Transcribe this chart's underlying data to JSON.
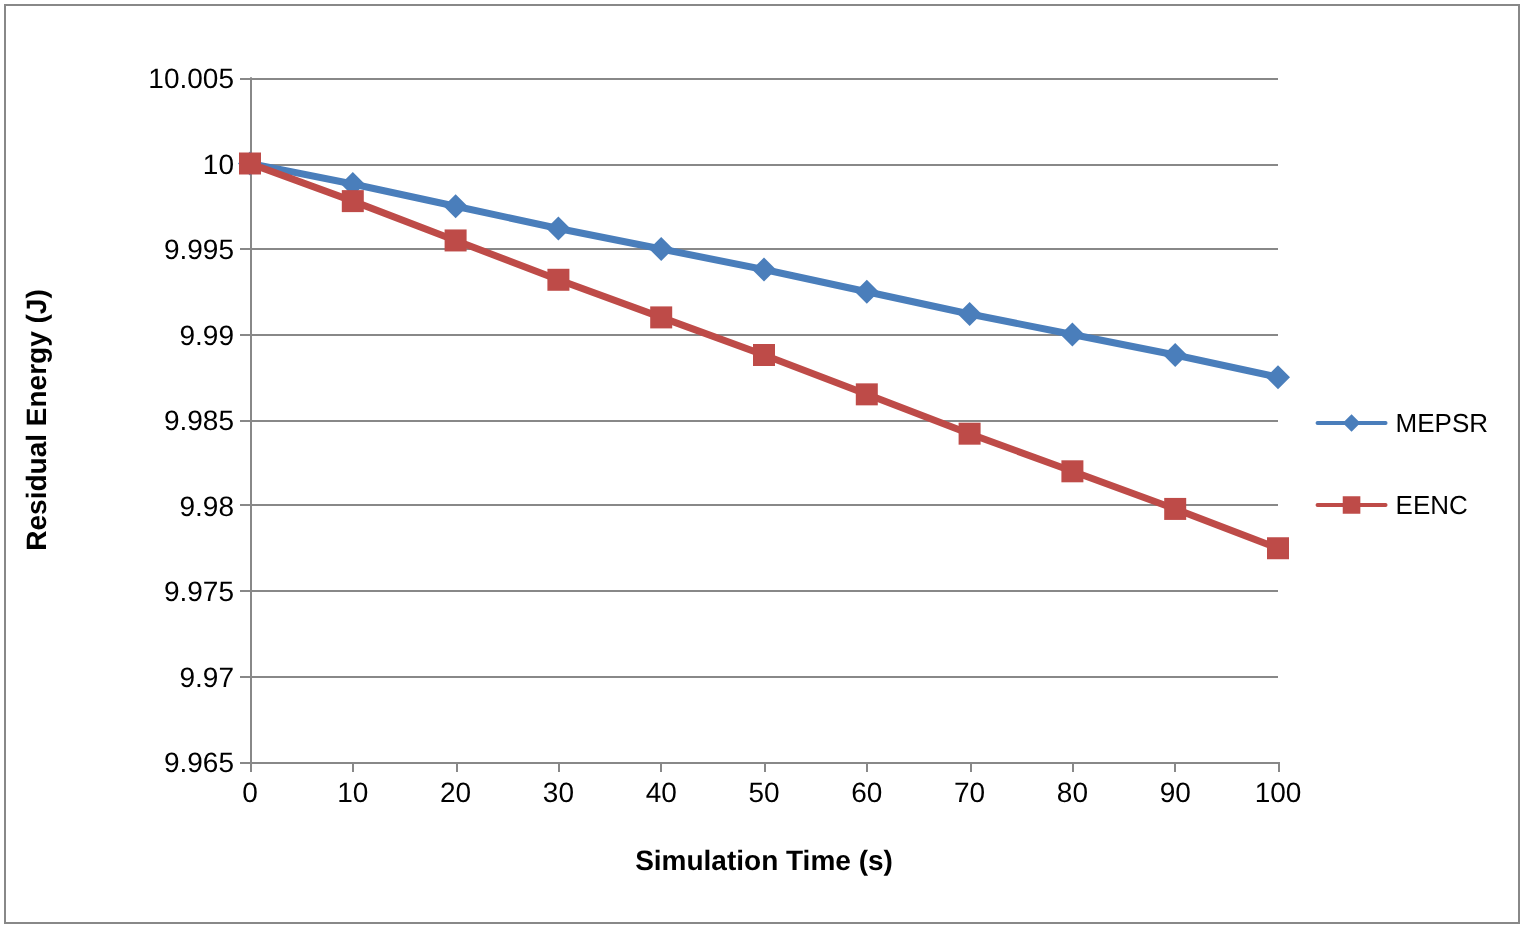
{
  "chart_data": {
    "type": "line",
    "xlabel": "Simulation Time (s)",
    "ylabel": "Residual Energy (J)",
    "x": [
      0,
      10,
      20,
      30,
      40,
      50,
      60,
      70,
      80,
      90,
      100
    ],
    "series": [
      {
        "name": "MEPSR",
        "color": "#4a7ebb",
        "marker": "diamond",
        "values": [
          10,
          9.9988,
          9.9975,
          9.9962,
          9.995,
          9.9938,
          9.9925,
          9.9912,
          9.99,
          9.9888,
          9.9875
        ]
      },
      {
        "name": "EENC",
        "color": "#be4b48",
        "marker": "square",
        "values": [
          10,
          9.9978,
          9.9955,
          9.9932,
          9.991,
          9.9888,
          9.9865,
          9.9842,
          9.982,
          9.9798,
          9.9775
        ]
      }
    ],
    "xlim": [
      0,
      100
    ],
    "xticks": [
      0,
      10,
      20,
      30,
      40,
      50,
      60,
      70,
      80,
      90,
      100
    ],
    "ylim": [
      9.965,
      10.005
    ],
    "yticks": [
      9.965,
      9.97,
      9.975,
      9.98,
      9.985,
      9.99,
      9.995,
      10,
      10.005
    ],
    "grid": "y",
    "legend": "right",
    "line_style": "solid"
  }
}
